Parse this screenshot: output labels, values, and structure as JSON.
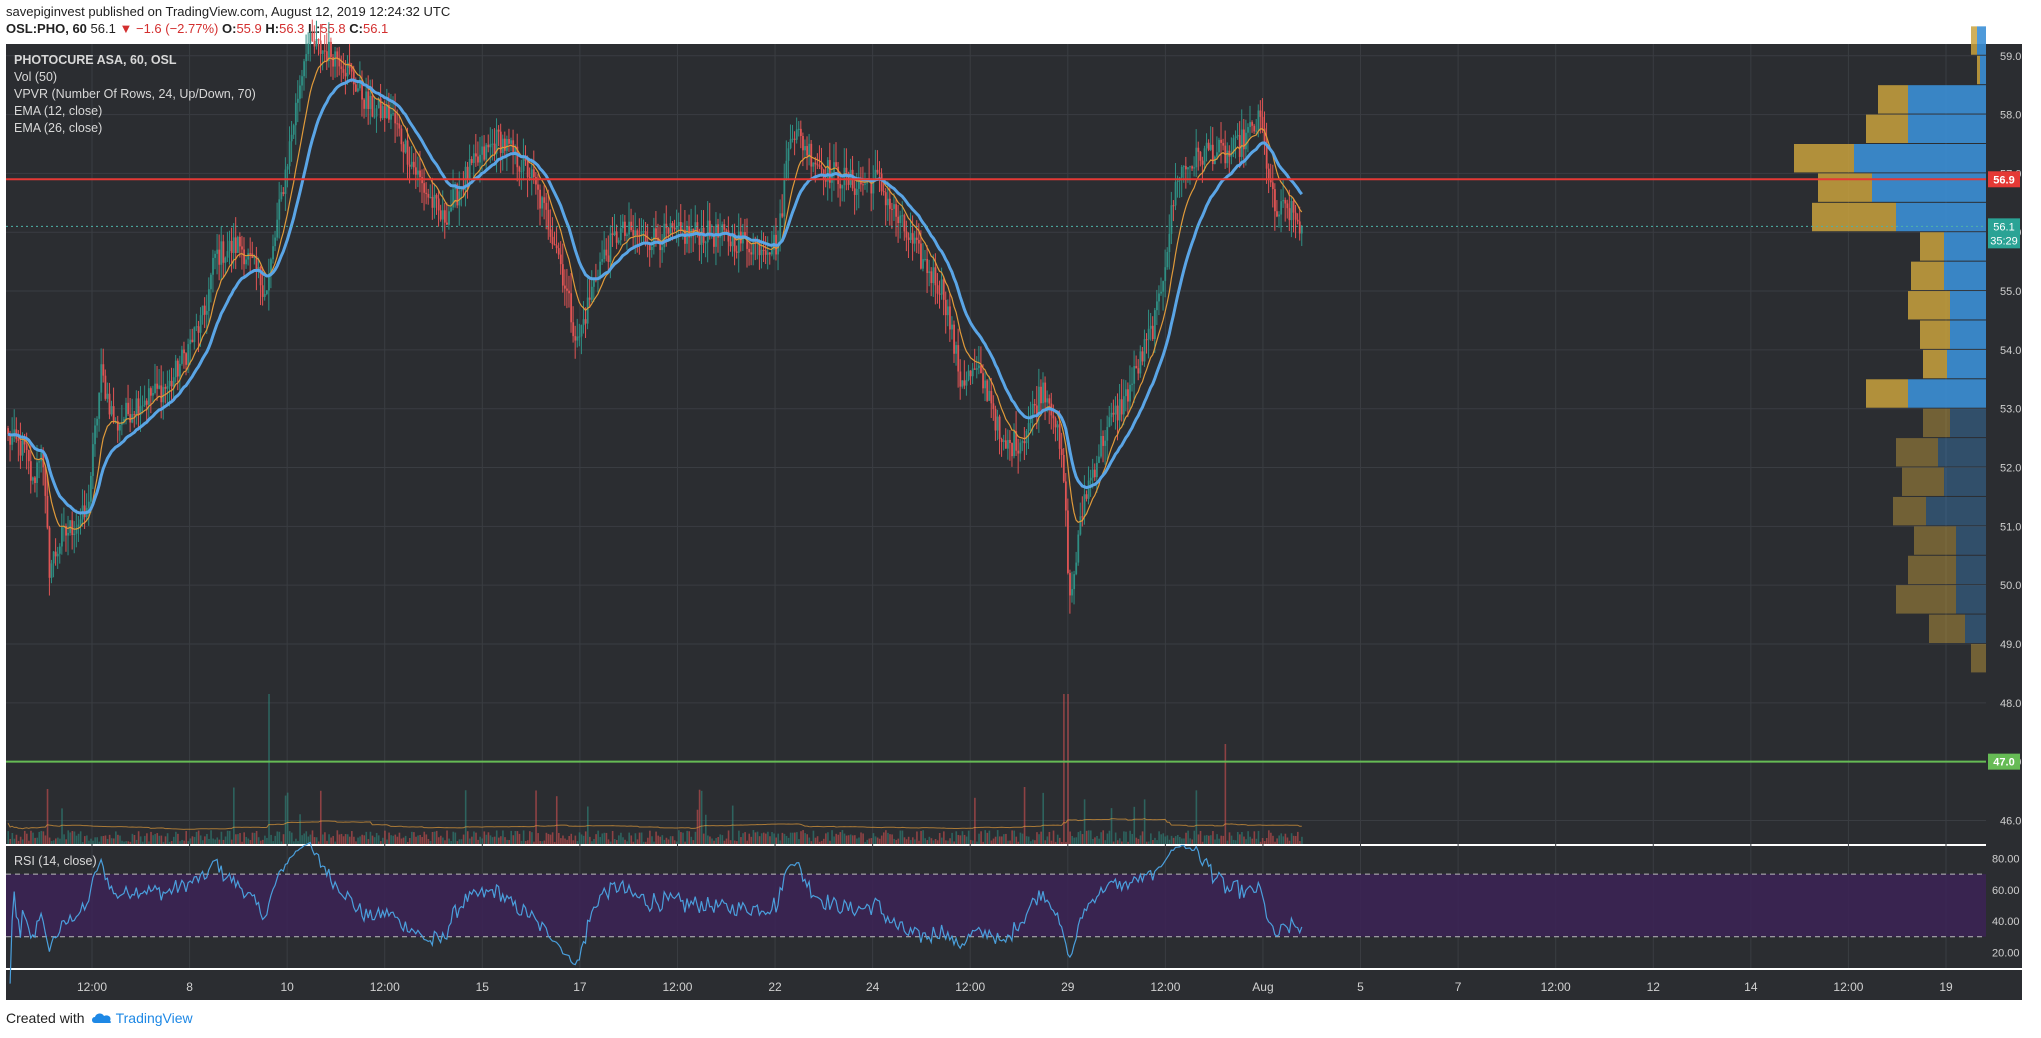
{
  "header": {
    "publisher": "savepiginvest",
    "published_text": "published on TradingView.com, August 12, 2019 12:24:32 UTC",
    "symbol": "OSL:PHO, 60",
    "last": "56.1",
    "change": "−1.6 (−2.77%)",
    "open_label": "O:",
    "open": "55.9",
    "high_label": "H:",
    "high": "56.3",
    "low_label": "L:",
    "low": "55.8",
    "close_label": "C:",
    "close": "56.1"
  },
  "legend": {
    "title": "PHOTOCURE ASA, 60, OSL",
    "vol": "Vol (50)",
    "vpvr": "VPVR (Number Of Rows, 24, Up/Down, 70)",
    "ema12": "EMA (12, close)",
    "ema26": "EMA (26, close)"
  },
  "rsi_label": "RSI (14, close)",
  "footer": {
    "created_with": "Created with",
    "brand": "TradingView"
  },
  "colors": {
    "background": "#2b2d31",
    "up": "#2f8f84",
    "down": "#e05454",
    "ema12": "#e09a3a",
    "ema26": "#5aa5e6",
    "resistance": "#e53935",
    "support": "#66bb55",
    "rsi_line": "#4a9fdc",
    "rsi_band": "#3c2356",
    "vpvr_up": "#3b8fd6",
    "vpvr_down": "#c9a23d"
  },
  "chart_data": {
    "type": "candlestick",
    "price_axis": {
      "min": 45.6,
      "max": 59.2,
      "ticks": [
        "59.0",
        "58.0",
        "57.0",
        "56.0",
        "55.0",
        "54.0",
        "53.0",
        "52.0",
        "51.0",
        "50.0",
        "49.0",
        "48.0",
        "47.0",
        "46.0"
      ]
    },
    "time_labels": [
      "12:00",
      "8",
      "10",
      "12:00",
      "15",
      "17",
      "12:00",
      "22",
      "24",
      "12:00",
      "29",
      "12:00",
      "Aug",
      "5",
      "7",
      "12:00",
      "12",
      "14",
      "12:00",
      "19"
    ],
    "horizontal_lines": [
      {
        "price": 56.9,
        "label": "56.9",
        "color": "#e53935"
      },
      {
        "price": 47.0,
        "label": "47.0",
        "color": "#66bb55"
      }
    ],
    "current_price": {
      "price": 56.1,
      "label": "56.1",
      "countdown": "35:29"
    },
    "anchors": [
      [
        0,
        52.5
      ],
      [
        8,
        52.3
      ],
      [
        12,
        51.7
      ],
      [
        16,
        52.4
      ],
      [
        20,
        50.3
      ],
      [
        26,
        50.8
      ],
      [
        31,
        51.0
      ],
      [
        38,
        51.2
      ],
      [
        45,
        53.6
      ],
      [
        52,
        52.7
      ],
      [
        62,
        53.1
      ],
      [
        78,
        53.4
      ],
      [
        95,
        54.6
      ],
      [
        100,
        55.6
      ],
      [
        112,
        55.8
      ],
      [
        125,
        55.0
      ],
      [
        132,
        56.6
      ],
      [
        144,
        59.2
      ],
      [
        160,
        59.0
      ],
      [
        175,
        58.1
      ],
      [
        185,
        58.0
      ],
      [
        200,
        56.8
      ],
      [
        210,
        56.2
      ],
      [
        222,
        57.0
      ],
      [
        237,
        57.6
      ],
      [
        252,
        57.0
      ],
      [
        265,
        55.8
      ],
      [
        275,
        54.1
      ],
      [
        285,
        55.4
      ],
      [
        295,
        56.0
      ],
      [
        310,
        55.9
      ],
      [
        335,
        56.0
      ],
      [
        360,
        55.8
      ],
      [
        372,
        55.8
      ],
      [
        378,
        57.8
      ],
      [
        393,
        57.1
      ],
      [
        410,
        56.8
      ],
      [
        420,
        56.9
      ],
      [
        430,
        56.2
      ],
      [
        440,
        55.6
      ],
      [
        452,
        55.0
      ],
      [
        460,
        53.5
      ],
      [
        468,
        53.6
      ],
      [
        475,
        53.2
      ],
      [
        480,
        52.3
      ],
      [
        490,
        52.5
      ],
      [
        500,
        53.4
      ],
      [
        505,
        53.0
      ],
      [
        510,
        51.8
      ],
      [
        513,
        49.7
      ],
      [
        520,
        51.5
      ],
      [
        530,
        52.6
      ],
      [
        540,
        53.2
      ],
      [
        548,
        53.9
      ],
      [
        555,
        54.6
      ],
      [
        565,
        57.0
      ],
      [
        580,
        57.4
      ],
      [
        590,
        57.3
      ],
      [
        605,
        57.9
      ],
      [
        612,
        56.3
      ],
      [
        618,
        56.4
      ],
      [
        625,
        56.1
      ]
    ],
    "candles_count": 626,
    "ema_periods": [
      12,
      26
    ],
    "volume_ma_period": 50,
    "rsi": {
      "period": 14,
      "ticks": [
        "80.00",
        "60.00",
        "40.00",
        "20.00"
      ],
      "upper": 70,
      "lower": 30
    },
    "vpvr_rows": [
      {
        "price": 59.0,
        "up": 3,
        "down": 2
      },
      {
        "price": 58.5,
        "up": 2,
        "down": 1
      },
      {
        "price": 58.0,
        "up": 26,
        "down": 10
      },
      {
        "price": 57.5,
        "up": 26,
        "down": 14
      },
      {
        "price": 57.0,
        "up": 44,
        "down": 20
      },
      {
        "price": 56.5,
        "up": 38,
        "down": 18
      },
      {
        "price": 56.0,
        "up": 30,
        "down": 28
      },
      {
        "price": 55.5,
        "up": 14,
        "down": 8
      },
      {
        "price": 55.0,
        "up": 14,
        "down": 11
      },
      {
        "price": 54.5,
        "up": 12,
        "down": 14
      },
      {
        "price": 54.0,
        "up": 12,
        "down": 10
      },
      {
        "price": 53.5,
        "up": 13,
        "down": 8
      },
      {
        "price": 53.0,
        "up": 26,
        "down": 14
      },
      {
        "price": 52.5,
        "up": 12,
        "down": 9
      },
      {
        "price": 52.0,
        "up": 16,
        "down": 14
      },
      {
        "price": 51.5,
        "up": 14,
        "down": 14
      },
      {
        "price": 51.0,
        "up": 20,
        "down": 11
      },
      {
        "price": 50.5,
        "up": 10,
        "down": 14
      },
      {
        "price": 50.0,
        "up": 10,
        "down": 16
      },
      {
        "price": 49.5,
        "up": 10,
        "down": 20
      },
      {
        "price": 49.0,
        "up": 7,
        "down": 12
      },
      {
        "price": 48.5,
        "up": 0,
        "down": 5
      }
    ]
  }
}
